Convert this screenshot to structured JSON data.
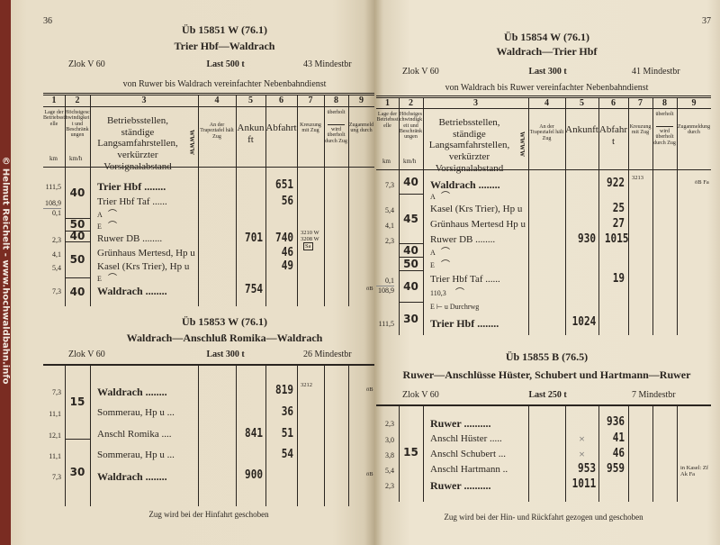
{
  "watermark": "© Helmut Reichelt - www.hochwaldbahn.info",
  "columns": {
    "numbers": [
      "1",
      "2",
      "3",
      "4",
      "5",
      "6",
      "7",
      "8",
      "9"
    ],
    "col1": "Lage der Betriebsstelle",
    "col1_unit": "km",
    "col2": "Höchstgeschwindigkeit und Beschränkungen",
    "col2_unit": "km/h",
    "col3": "Betriebsstellen, ständige Langsamfahrstellen, verkürzter Vorsignalabstand",
    "col3_symbol": "WWWW",
    "col4": "An der Trapeztafel hält Zug",
    "col5": "Ankunft",
    "col6": "Abfahrt",
    "col7": "Kreuzung mit Zug",
    "col8_top": "überholt",
    "col8_bottom": "wird überholt durch Zug",
    "col9": "Zuganmeldung durch"
  },
  "left_page": {
    "page_number": "36",
    "tables": [
      {
        "title": "Üb 15851 W (76.1)",
        "route": "Trier Hbf—Waldrach",
        "loco": "Zlok V 60",
        "load": "Last 500 t",
        "brakes": "43 Mindestbr",
        "note": "von Ruwer bis Waldrach vereinfachter Nebenbahndienst",
        "speeds": [
          "40",
          "50",
          "40",
          "50",
          "40"
        ],
        "rows": [
          {
            "km": "111,5",
            "station": "Trier Hbf ........",
            "bold": true,
            "dep": "651"
          },
          {
            "km": "108,9",
            "km2": "0,1",
            "station": "Trier Hbf Taf ......",
            "dep": "56"
          },
          {
            "marker": "A"
          },
          {
            "marker": "E"
          },
          {
            "km": "2,3",
            "station": "Ruwer DB ........",
            "arr": "701",
            "dep": "740",
            "cross": "3210 W",
            "cross2": "3208 W",
            "cross3": "Sa"
          },
          {
            "km": "4,1",
            "station": "Grünhaus Mertesd, Hp u",
            "dep": "46"
          },
          {
            "km": "5,4",
            "station": "Kasel (Krs Trier), Hp u",
            "dep": "49"
          },
          {
            "marker": "E"
          },
          {
            "km": "7,3",
            "station": "Waldrach ........",
            "bold": true,
            "arr": "754",
            "report": "öB Ak"
          }
        ]
      },
      {
        "title": "Üb 15853 W (76.1)",
        "route": "Waldrach—Anschluß Romika—Waldrach",
        "loco": "Zlok V 60",
        "load": "Last 300 t",
        "brakes": "26 Mindestbr",
        "speeds": [
          "15",
          "30"
        ],
        "rows": [
          {
            "km": "7,3",
            "station": "Waldrach ........",
            "bold": true,
            "dep": "819",
            "cross": "3212",
            "report": "öB Fa"
          },
          {
            "km": "11,1",
            "station": "Sommerau, Hp u ...",
            "dep": "36"
          },
          {
            "km": "12,1",
            "station": "Anschl Romika ....",
            "arr": "841",
            "dep": "51"
          },
          {
            "km": "11,1",
            "station": "Sommerau, Hp u ...",
            "dep": "54"
          },
          {
            "km": "7,3",
            "station": "Waldrach ........",
            "bold": true,
            "arr": "900",
            "report": "öB Ak"
          }
        ],
        "footnote": "Zug wird bei der Hinfahrt geschoben"
      }
    ]
  },
  "right_page": {
    "page_number": "37",
    "tables": [
      {
        "title": "Üb 15854 W (76.1)",
        "route": "Waldrach—Trier Hbf",
        "loco": "Zlok V 60",
        "load": "Last 300 t",
        "brakes": "41 Mindestbr",
        "note": "von Waldrach bis Ruwer vereinfachter Nebenbahndienst",
        "speeds": [
          "40",
          "45",
          "40",
          "50",
          "40",
          "30"
        ],
        "rows": [
          {
            "km": "7,3",
            "station": "Waldrach ........",
            "bold": true,
            "dep": "922",
            "cross": "3213",
            "report": "öB Fa"
          },
          {
            "marker": "A"
          },
          {
            "km": "5,4",
            "station": "Kasel (Krs Trier), Hp u",
            "dep": "25"
          },
          {
            "km": "4,1",
            "station": "Grünhaus Mertesd Hp u",
            "dep": "27"
          },
          {
            "km": "2,3",
            "station": "Ruwer DB ........",
            "arr": "930",
            "dep": "1015"
          },
          {
            "marker": "A"
          },
          {
            "marker": "E"
          },
          {
            "km": "0,1",
            "km2": "108,9",
            "station": "Trier Hbf Taf ......",
            "dep": "19"
          },
          {
            "marker": "110,3"
          },
          {
            "marker": "E ⊢ u Durchrwg"
          },
          {
            "km": "111,5",
            "station": "Trier Hbf ........",
            "bold": true,
            "arr": "1024"
          }
        ]
      },
      {
        "title": "Üb 15855 B (76.5)",
        "route": "Ruwer—Anschlüsse Hüster, Schubert und Hartmann—Ruwer",
        "loco": "Zlok V 60",
        "load": "Last 250 t",
        "brakes": "7 Mindestbr",
        "speeds": [
          "15"
        ],
        "rows": [
          {
            "km": "2,3",
            "station": "Ruwer ..........",
            "bold": true,
            "dep": "936"
          },
          {
            "km": "3,0",
            "station": "Anschl Hüster .....",
            "arr": "×",
            "dep": "41"
          },
          {
            "km": "3,8",
            "station": "Anschl Schubert ...",
            "arr": "×",
            "dep": "46"
          },
          {
            "km": "5,4",
            "station": "Anschl Hartmann ..",
            "arr": "953",
            "dep": "959",
            "report": "in Kasel: Zf Ak Fa"
          },
          {
            "km": "2,3",
            "station": "Ruwer ..........",
            "bold": true,
            "arr": "1011"
          }
        ],
        "footnote": "Zug wird bei der Hin- und Rückfahrt gezogen und geschoben"
      }
    ]
  }
}
